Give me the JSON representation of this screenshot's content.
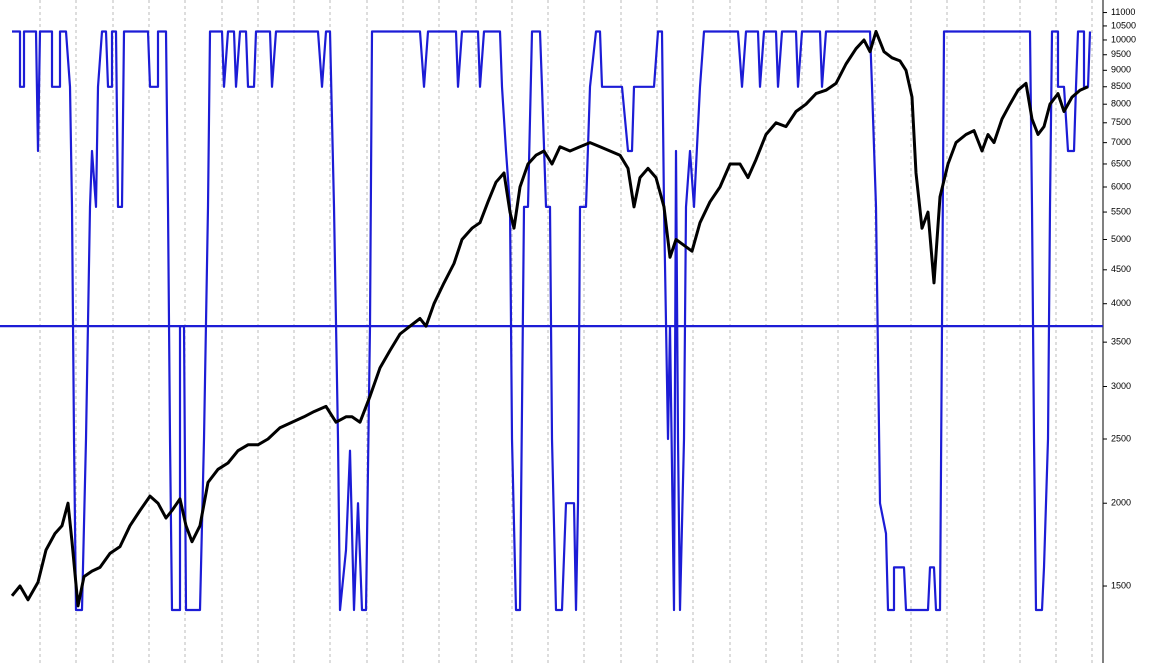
{
  "chart_data": {
    "type": "line",
    "log_scale": true,
    "grid": true,
    "xlim": [
      0,
      1103
    ],
    "xticks": [
      40,
      76,
      113,
      149,
      185,
      222,
      258,
      294,
      330,
      367,
      403,
      439,
      476,
      512,
      548,
      584,
      621,
      657,
      693,
      730,
      766,
      802,
      838,
      875,
      911,
      947,
      984,
      1020,
      1056,
      1092
    ],
    "ylim": [
      1148,
      11490
    ],
    "yticks": [
      1500,
      2000,
      2500,
      3000,
      3500,
      4000,
      4500,
      5000,
      5500,
      6000,
      6500,
      7000,
      7500,
      8000,
      8500,
      9000,
      9500,
      10000,
      10500,
      11000
    ],
    "reference_line": {
      "value": 3700,
      "color": "#1c1cd6"
    },
    "series": [
      {
        "color": "#1c1cd6",
        "x": [
          12,
          20,
          20,
          24,
          24,
          36,
          38,
          40,
          52,
          52,
          60,
          60,
          66,
          70,
          72,
          74,
          76,
          82,
          86,
          90,
          92,
          96,
          98,
          102,
          106,
          108,
          112,
          112,
          116,
          118,
          122,
          124,
          148,
          150,
          158,
          158,
          166,
          168,
          170,
          172,
          180,
          180,
          184,
          186,
          200,
          204,
          208,
          210,
          222,
          224,
          228,
          234,
          236,
          240,
          246,
          248,
          254,
          256,
          270,
          272,
          276,
          318,
          322,
          326,
          330,
          334,
          338,
          340,
          346,
          350,
          354,
          358,
          362,
          366,
          370,
          372,
          420,
          424,
          428,
          456,
          458,
          462,
          478,
          480,
          484,
          500,
          502,
          506,
          510,
          512,
          516,
          520,
          524,
          528,
          532,
          540,
          542,
          546,
          550,
          552,
          556,
          562,
          566,
          574,
          576,
          578,
          580,
          586,
          590,
          596,
          600,
          602,
          622,
          628,
          632,
          634,
          654,
          658,
          662,
          664,
          668,
          670,
          674,
          676,
          678,
          680,
          684,
          686,
          690,
          694,
          700,
          704,
          738,
          742,
          746,
          758,
          760,
          764,
          776,
          778,
          782,
          796,
          798,
          802,
          820,
          822,
          826,
          870,
          872,
          876,
          880,
          886,
          888,
          894,
          894,
          904,
          906,
          928,
          930,
          934,
          936,
          940,
          942,
          944,
          1030,
          1032,
          1034,
          1036,
          1042,
          1044,
          1048,
          1050,
          1052,
          1058,
          1058,
          1064,
          1068,
          1074,
          1076,
          1078,
          1084,
          1084,
          1088,
          1090
        ],
        "values": [
          10300,
          10300,
          8500,
          8500,
          10300,
          10300,
          6800,
          10300,
          10300,
          8500,
          8500,
          10300,
          10300,
          8500,
          5600,
          2500,
          1380,
          1380,
          2500,
          5600,
          6800,
          5600,
          8500,
          10300,
          10300,
          8500,
          8500,
          10300,
          10300,
          5600,
          5600,
          10300,
          10300,
          8500,
          8500,
          10300,
          10300,
          5600,
          2500,
          1380,
          1380,
          3700,
          3700,
          1380,
          1380,
          2500,
          5600,
          10300,
          10300,
          8500,
          10300,
          10300,
          8500,
          10300,
          10300,
          8500,
          8500,
          10300,
          10300,
          8500,
          10300,
          10300,
          8500,
          10300,
          10300,
          5600,
          2500,
          1380,
          1700,
          2400,
          1380,
          2000,
          1380,
          1380,
          3700,
          10300,
          10300,
          8500,
          10300,
          10300,
          8500,
          10300,
          10300,
          8500,
          10300,
          10300,
          8500,
          6800,
          5600,
          2500,
          1380,
          1380,
          5600,
          5600,
          10300,
          10300,
          8500,
          5600,
          5600,
          2500,
          1380,
          1380,
          2000,
          2000,
          1380,
          2000,
          5600,
          5600,
          8500,
          10300,
          10300,
          8500,
          8500,
          6800,
          6800,
          8500,
          8500,
          10300,
          10300,
          5600,
          2500,
          3700,
          1380,
          6800,
          2500,
          1380,
          2500,
          5600,
          6800,
          5600,
          8500,
          10300,
          10300,
          8500,
          10300,
          10300,
          8500,
          10300,
          10300,
          8500,
          10300,
          10300,
          8500,
          10300,
          10300,
          8500,
          10300,
          10300,
          8500,
          5600,
          2000,
          1800,
          1380,
          1380,
          1600,
          1600,
          1380,
          1380,
          1600,
          1600,
          1380,
          1380,
          3700,
          10300,
          10300,
          5600,
          2500,
          1380,
          1380,
          1600,
          2500,
          5600,
          10300,
          10300,
          8500,
          8500,
          6800,
          6800,
          8500,
          10300,
          10300,
          8500,
          8500,
          10300
        ]
      },
      {
        "color": "#000000",
        "x": [
          12,
          20,
          28,
          38,
          46,
          55,
          62,
          68,
          72,
          78,
          84,
          92,
          100,
          110,
          120,
          130,
          140,
          150,
          158,
          166,
          172,
          180,
          186,
          192,
          200,
          208,
          218,
          228,
          238,
          248,
          258,
          268,
          280,
          292,
          304,
          314,
          326,
          336,
          346,
          352,
          360,
          370,
          380,
          390,
          400,
          410,
          420,
          426,
          434,
          444,
          454,
          462,
          472,
          480,
          488,
          496,
          504,
          510,
          514,
          520,
          528,
          536,
          544,
          552,
          560,
          570,
          580,
          590,
          600,
          610,
          620,
          628,
          634,
          640,
          648,
          656,
          664,
          670,
          676,
          684,
          692,
          700,
          710,
          720,
          730,
          740,
          748,
          756,
          766,
          776,
          786,
          796,
          806,
          816,
          826,
          836,
          846,
          856,
          864,
          870,
          876,
          884,
          892,
          900,
          906,
          912,
          916,
          922,
          928,
          934,
          940,
          948,
          956,
          966,
          974,
          982,
          988,
          994,
          1002,
          1010,
          1018,
          1026,
          1032,
          1038,
          1044,
          1050,
          1058,
          1064,
          1072,
          1080,
          1088
        ],
        "values": [
          1450,
          1500,
          1430,
          1520,
          1700,
          1800,
          1850,
          2000,
          1750,
          1400,
          1550,
          1580,
          1600,
          1680,
          1720,
          1850,
          1950,
          2050,
          2000,
          1900,
          1950,
          2030,
          1850,
          1750,
          1850,
          2150,
          2250,
          2300,
          2400,
          2450,
          2450,
          2500,
          2600,
          2650,
          2700,
          2750,
          2800,
          2650,
          2700,
          2700,
          2650,
          2900,
          3200,
          3400,
          3600,
          3700,
          3800,
          3700,
          4000,
          4300,
          4600,
          5000,
          5200,
          5300,
          5700,
          6100,
          6300,
          5500,
          5200,
          6000,
          6500,
          6700,
          6800,
          6500,
          6900,
          6800,
          6900,
          7000,
          6900,
          6800,
          6700,
          6400,
          5600,
          6200,
          6400,
          6200,
          5600,
          4700,
          5000,
          4900,
          4800,
          5300,
          5700,
          6000,
          6500,
          6500,
          6200,
          6600,
          7200,
          7500,
          7400,
          7800,
          8000,
          8300,
          8400,
          8600,
          9200,
          9700,
          10000,
          9600,
          10300,
          9600,
          9400,
          9300,
          9000,
          8200,
          6300,
          5200,
          5500,
          4300,
          5800,
          6500,
          7000,
          7200,
          7300,
          6800,
          7200,
          7000,
          7600,
          8000,
          8400,
          8600,
          7600,
          7200,
          7400,
          8000,
          8300,
          7800,
          8200,
          8400,
          8500
        ]
      }
    ]
  }
}
